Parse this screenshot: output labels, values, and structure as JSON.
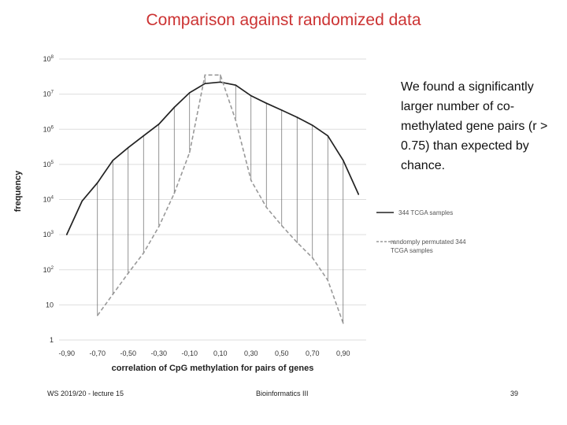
{
  "slide": {
    "title": "Comparison against randomized data",
    "annotation": "We found a significantly larger number of co-methylated gene pairs (r > 0.75) than expected by chance.",
    "footer_left": "WS 2019/20 - lecture 15",
    "footer_center": "Bioinformatics III",
    "footer_right": "39"
  },
  "chart_data": {
    "type": "line",
    "title": "",
    "xlabel": "correlation of CpG methylation for pairs of genes",
    "ylabel": "frequency",
    "y_scale": "log",
    "ylim": [
      1,
      100000000
    ],
    "xlim": [
      -0.95,
      1.05
    ],
    "x_ticks": [
      "-0,90",
      "-0,70",
      "-0,50",
      "-0,30",
      "-0,10",
      "0,10",
      "0,30",
      "0,50",
      "0,70",
      "0,90"
    ],
    "x_tick_values": [
      -0.9,
      -0.7,
      -0.5,
      -0.3,
      -0.1,
      0.1,
      0.3,
      0.5,
      0.7,
      0.9
    ],
    "y_ticks": [
      {
        "base": "1",
        "exp": "",
        "value": 1
      },
      {
        "base": "10",
        "exp": "",
        "value": 10
      },
      {
        "base": "10",
        "exp": "2",
        "value": 100
      },
      {
        "base": "10",
        "exp": "3",
        "value": 1000
      },
      {
        "base": "10",
        "exp": "4",
        "value": 10000
      },
      {
        "base": "10",
        "exp": "5",
        "value": 100000
      },
      {
        "base": "10",
        "exp": "6",
        "value": 1000000
      },
      {
        "base": "10",
        "exp": "7",
        "value": 10000000
      },
      {
        "base": "10",
        "exp": "8",
        "value": 100000000
      }
    ],
    "grid": "horizontal",
    "legend_position": "right",
    "x": [
      -0.9,
      -0.8,
      -0.7,
      -0.6,
      -0.5,
      -0.4,
      -0.3,
      -0.2,
      -0.1,
      0.0,
      0.1,
      0.2,
      0.3,
      0.4,
      0.5,
      0.6,
      0.7,
      0.8,
      0.9,
      1.0
    ],
    "series": [
      {
        "name": "344 TCGA samples",
        "style": "solid",
        "color": "#222222",
        "values": [
          1000,
          9000,
          30000,
          130000,
          300000,
          650000,
          1400000,
          4200000,
          11000000,
          20000000,
          22000000,
          18000000,
          9000000,
          5500000,
          3500000,
          2200000,
          1300000,
          650000,
          130000,
          14000
        ]
      },
      {
        "name": "randomply permutated 344 TCGA samples",
        "style": "dashed",
        "color": "#999999",
        "values": [
          null,
          null,
          5,
          20,
          80,
          300,
          1700,
          15000,
          220000,
          35000000,
          35000000,
          1800000,
          35000,
          6000,
          1800,
          600,
          220,
          50,
          3,
          null
        ]
      }
    ]
  },
  "colors": {
    "title": "#cc3333",
    "grid": "#dddddd",
    "drop_lines": "#666666"
  }
}
